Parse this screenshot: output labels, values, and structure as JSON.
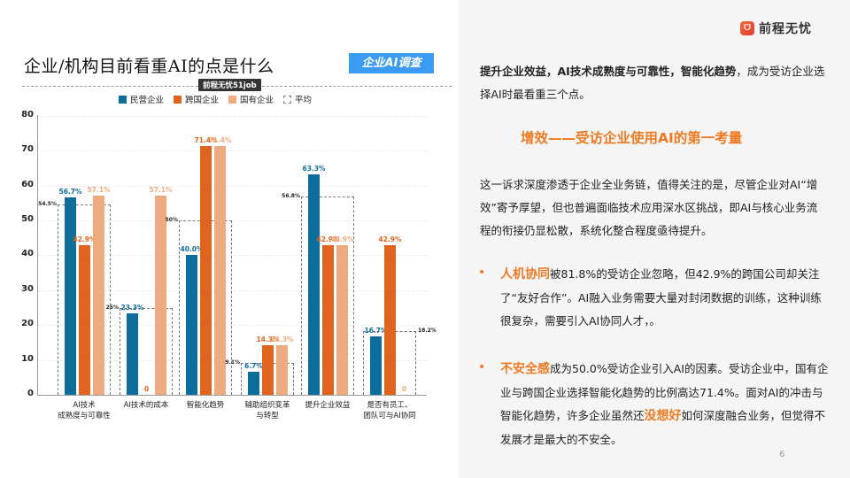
{
  "left": {
    "title": "企业/机构目前看重AI的点是什么",
    "tag": "企业AI调查",
    "source": "前程无忧51job"
  },
  "legend": [
    {
      "label": "民营企业",
      "color": "#0e6e9b"
    },
    {
      "label": "跨国企业",
      "color": "#e0641e"
    },
    {
      "label": "国有企业",
      "color": "#eeab80"
    },
    {
      "label": "平均",
      "color": "dashed"
    }
  ],
  "chart_data": {
    "type": "bar",
    "title": "企业/机构目前看重AI的点是什么",
    "categories": [
      "AI技术\n成熟度与可靠性",
      "AI技术的成本",
      "智能化趋势",
      "辅助组织变革\n与转型",
      "提升企业效益",
      "是否有员工、\n团队可与AI协同"
    ],
    "series": [
      {
        "name": "民营企业",
        "color": "#0e6e9b",
        "values": [
          56.7,
          23.3,
          40.0,
          6.7,
          63.3,
          16.7
        ],
        "labels": [
          "56.7%",
          "23.3%",
          "40.0%",
          "6.7%",
          "63.3%",
          "16.7%"
        ]
      },
      {
        "name": "跨国企业",
        "color": "#e0641e",
        "values": [
          42.9,
          0,
          71.4,
          14.3,
          42.9,
          42.9
        ],
        "labels": [
          "42.9%",
          "0",
          "71.4%",
          "14.3%",
          "42.9%",
          "42.9%"
        ]
      },
      {
        "name": "国有企业",
        "color": "#eeab80",
        "values": [
          57.1,
          57.1,
          71.4,
          14.3,
          42.9,
          0
        ],
        "labels": [
          "57.1%",
          "57.1%",
          "71.4%",
          "14.3%",
          "42.9%",
          "0"
        ]
      }
    ],
    "average": {
      "name": "平均",
      "values": [
        54.5,
        25,
        50,
        9.1,
        56.8,
        18.2
      ],
      "labels": [
        "54.5%",
        "25%",
        "50%",
        "9.1%",
        "56.8%",
        "18.2%"
      ]
    },
    "yticks": [
      "0",
      "10",
      "20",
      "30",
      "40",
      "50",
      "60",
      "70",
      "80"
    ],
    "ylim": [
      0,
      80
    ],
    "xlabel": "",
    "ylabel": "",
    "legend_position": "top",
    "grid": true
  },
  "right": {
    "logo_text": "前程无忧",
    "intro_bold": "提升企业效益，AI技术成熟度与可靠性，智能化趋势",
    "intro_rest": "，成为受访企业选择AI时最看重三个点。",
    "subheading": "增效——受访企业使用AI的第一考量",
    "paragraph": "这一诉求深度渗透于企业全业务链，值得关注的是，尽管企业对AI“增效”寄予厚望，但也普遍面临技术应用深水区挑战，即AI与核心业务流程的衔接仍显松散，系统化整合程度亟待提升。",
    "bullet1_hl": "人机协同",
    "bullet1_text": "被81.8%的受访企业忽略，但42.9%的跨国公司却关注了“友好合作”。AI融入业务需要大量对封闭数据的训练，这种训练很复杂，需要引入AI协同人才，。",
    "bullet2_hl": "不安全感",
    "bullet2_text1": "成为50.0%受访企业引入AI的因素。受访企业中，国有企业与跨国企业选择智能化趋势的比例高达71.4%。面对AI的冲击与智能化趋势，许多企业虽然还",
    "bullet2_hl2": "没想好",
    "bullet2_text2": "如何深度融合业务，但觉得不发展才是最大的不安全。",
    "bullet_char": "•",
    "page_number": "6"
  }
}
